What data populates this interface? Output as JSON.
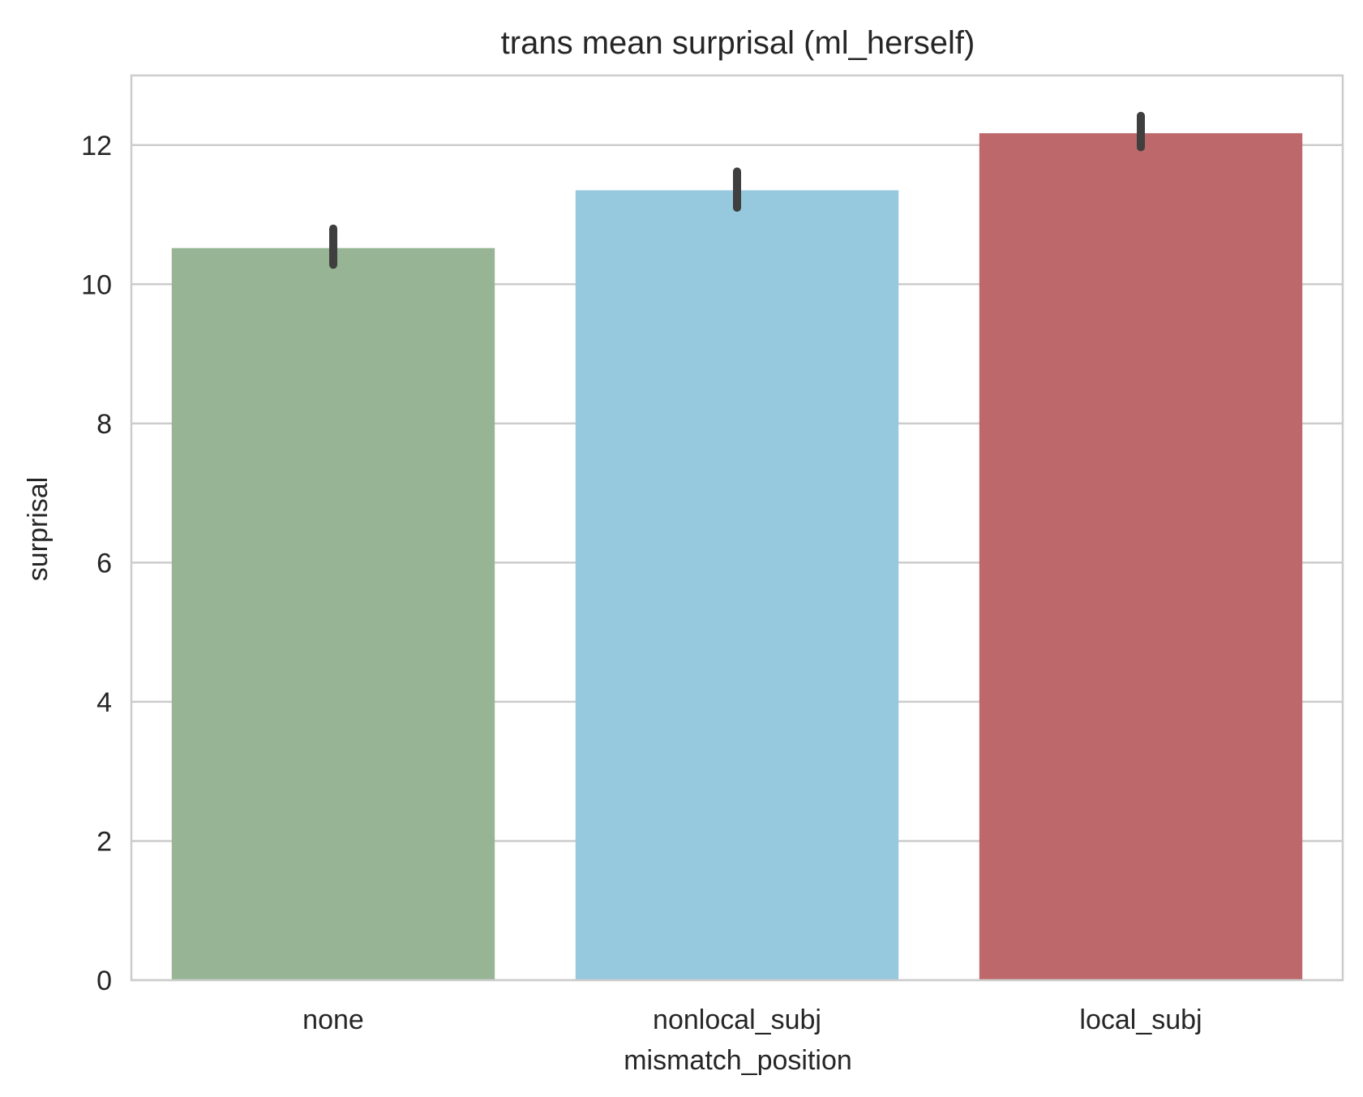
{
  "chart_data": {
    "type": "bar",
    "title": "trans mean surprisal (ml_herself)",
    "xlabel": "mismatch_position",
    "ylabel": "surprisal",
    "categories": [
      "none",
      "nonlocal_subj",
      "local_subj"
    ],
    "values": [
      10.52,
      11.35,
      12.17
    ],
    "error_low": [
      10.28,
      11.1,
      11.97
    ],
    "error_high": [
      10.8,
      11.62,
      12.42
    ],
    "colors": [
      "#97b594",
      "#96c8de",
      "#bd686a"
    ],
    "error_color": "#3f3f3f",
    "ylim": [
      0,
      13
    ],
    "yticks": [
      0,
      2,
      4,
      6,
      8,
      10,
      12
    ],
    "grid": true,
    "grid_axis": "y"
  }
}
